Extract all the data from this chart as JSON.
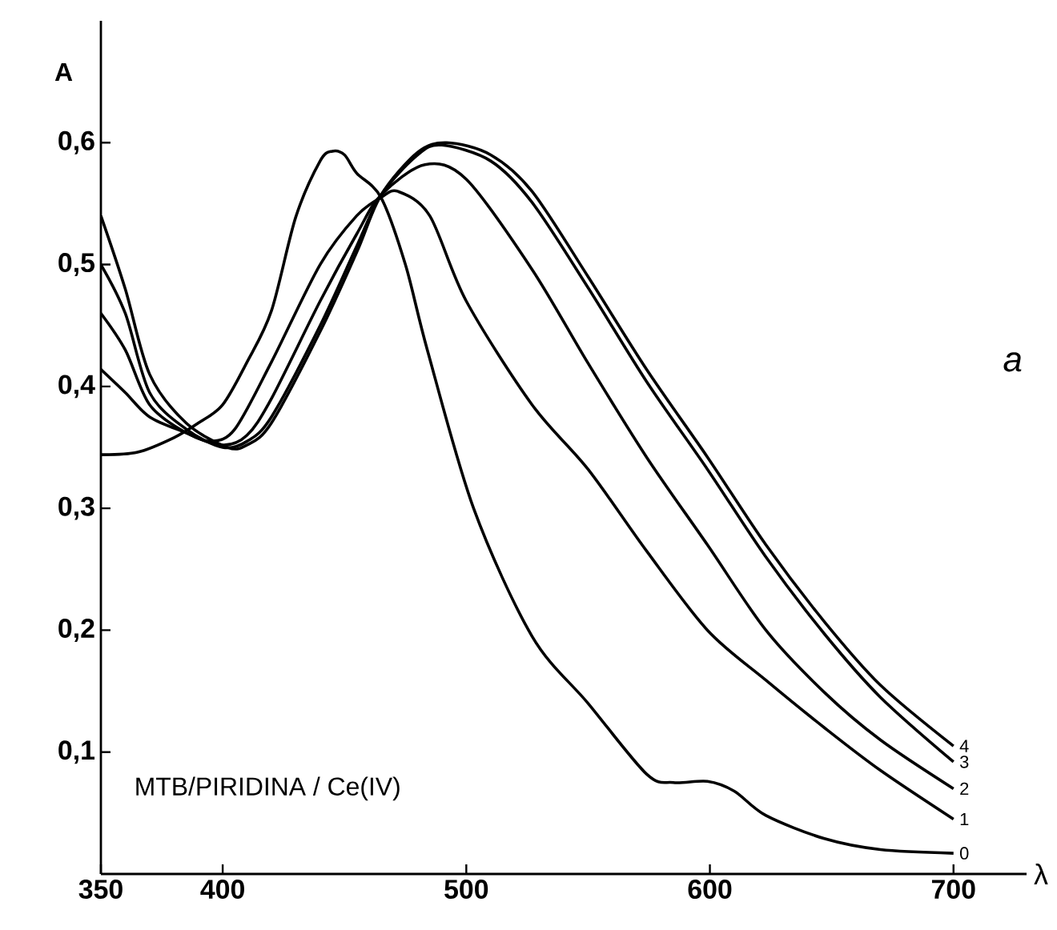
{
  "chart_data": {
    "type": "line",
    "xlabel": "λ",
    "ylabel": "A",
    "annotations": [
      "MTB/PIRIDINA / Ce(IV)",
      "a"
    ],
    "xlim": [
      350,
      730
    ],
    "ylim": [
      0,
      0.7
    ],
    "xticks": [
      350,
      400,
      500,
      600,
      700
    ],
    "yticks": [
      {
        "value": 0.1,
        "label": "0,1"
      },
      {
        "value": 0.2,
        "label": "0,2"
      },
      {
        "value": 0.3,
        "label": "0,3"
      },
      {
        "value": 0.4,
        "label": "0,4"
      },
      {
        "value": 0.5,
        "label": "0,5"
      },
      {
        "value": 0.6,
        "label": "0,6"
      }
    ],
    "grid": false,
    "legend": false,
    "marker": "none",
    "line_style": "solid",
    "series": [
      {
        "name": "0",
        "color": "#000000",
        "x": [
          350,
          365,
          380,
          390,
          400,
          410,
          420,
          430,
          440,
          445,
          450,
          455,
          465,
          475,
          484,
          503,
          527,
          550,
          574,
          585,
          599,
          610,
          623,
          647,
          670,
          700
        ],
        "values": [
          0.344,
          0.346,
          0.358,
          0.37,
          0.385,
          0.42,
          0.462,
          0.539,
          0.585,
          0.593,
          0.59,
          0.575,
          0.555,
          0.5,
          0.43,
          0.3,
          0.195,
          0.14,
          0.082,
          0.075,
          0.076,
          0.068,
          0.048,
          0.029,
          0.02,
          0.017
        ]
      },
      {
        "name": "1",
        "color": "#000000",
        "x": [
          350,
          360,
          370,
          385,
          395,
          405,
          420,
          440,
          455,
          465,
          472,
          485,
          500,
          527,
          550,
          574,
          599,
          623,
          647,
          670,
          700
        ],
        "values": [
          0.414,
          0.395,
          0.375,
          0.362,
          0.355,
          0.365,
          0.42,
          0.5,
          0.54,
          0.555,
          0.56,
          0.54,
          0.47,
          0.385,
          0.332,
          0.265,
          0.2,
          0.159,
          0.12,
          0.085,
          0.045
        ]
      },
      {
        "name": "2",
        "color": "#000000",
        "x": [
          350,
          360,
          370,
          385,
          400,
          410,
          420,
          440,
          455,
          465,
          483,
          500,
          527,
          550,
          574,
          599,
          623,
          647,
          670,
          700
        ],
        "values": [
          0.46,
          0.43,
          0.385,
          0.362,
          0.352,
          0.36,
          0.39,
          0.47,
          0.525,
          0.557,
          0.582,
          0.57,
          0.496,
          0.419,
          0.342,
          0.27,
          0.2,
          0.149,
          0.11,
          0.07
        ]
      },
      {
        "name": "3",
        "color": "#000000",
        "x": [
          350,
          360,
          370,
          385,
          400,
          410,
          420,
          440,
          455,
          465,
          480,
          490,
          510,
          527,
          550,
          574,
          599,
          623,
          647,
          670,
          700
        ],
        "values": [
          0.5,
          0.46,
          0.395,
          0.365,
          0.35,
          0.355,
          0.375,
          0.45,
          0.515,
          0.557,
          0.59,
          0.598,
          0.585,
          0.551,
          0.481,
          0.404,
          0.332,
          0.26,
          0.197,
          0.145,
          0.092
        ]
      },
      {
        "name": "4",
        "color": "#000000",
        "x": [
          350,
          360,
          370,
          385,
          402,
          410,
          420,
          440,
          455,
          465,
          480,
          492,
          510,
          527,
          550,
          574,
          599,
          623,
          647,
          670,
          700
        ],
        "values": [
          0.54,
          0.48,
          0.41,
          0.37,
          0.35,
          0.352,
          0.37,
          0.445,
          0.51,
          0.557,
          0.592,
          0.6,
          0.59,
          0.56,
          0.49,
          0.414,
          0.342,
          0.27,
          0.207,
          0.155,
          0.105
        ]
      }
    ]
  }
}
